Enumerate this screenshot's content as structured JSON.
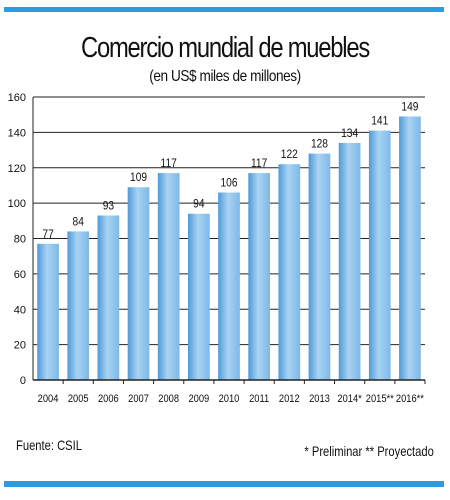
{
  "chart_data": {
    "type": "bar",
    "title": "Comercio mundial de muebles",
    "subtitle": "(en US$ miles de millones)",
    "categories": [
      "2004",
      "2005",
      "2006",
      "2007",
      "2008",
      "2009",
      "2010",
      "2011",
      "2012",
      "2013",
      "2014*",
      "2015**",
      "2016**"
    ],
    "values": [
      77,
      84,
      93,
      109,
      117,
      94,
      106,
      117,
      122,
      128,
      134,
      141,
      149
    ],
    "data_labels": [
      "77",
      "84",
      "93",
      "109",
      "117",
      "94",
      "106",
      "117",
      "122",
      "128",
      "134",
      "141",
      "149"
    ],
    "yticks": [
      "0",
      "20",
      "40",
      "60",
      "80",
      "100",
      "120",
      "140",
      "160"
    ],
    "ylim": [
      0,
      160
    ],
    "xlabel": "",
    "ylabel": "",
    "grid": true,
    "bar_color": "#7db9e8",
    "bar_color_top": "#a9d3f3",
    "bar_color_bottom": "#4f9ad8"
  },
  "footer": {
    "source": "Fuente: CSIL",
    "note": "* Preliminar ** Proyectado"
  },
  "colors": {
    "accent": "#2e9be0"
  }
}
